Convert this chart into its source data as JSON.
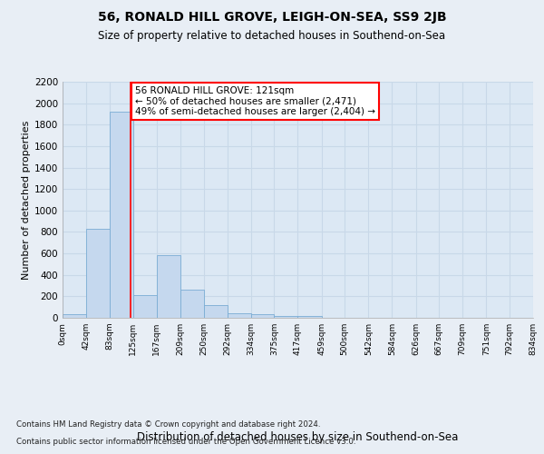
{
  "title": "56, RONALD HILL GROVE, LEIGH-ON-SEA, SS9 2JB",
  "subtitle": "Size of property relative to detached houses in Southend-on-Sea",
  "xlabel": "Distribution of detached houses by size in Southend-on-Sea",
  "ylabel": "Number of detached properties",
  "bar_edges": [
    0,
    42,
    83,
    125,
    167,
    209,
    250,
    292,
    334,
    375,
    417,
    459,
    500,
    542,
    584,
    626,
    667,
    709,
    751,
    792,
    834
  ],
  "bar_heights": [
    30,
    830,
    1920,
    210,
    580,
    260,
    115,
    40,
    35,
    20,
    15,
    0,
    0,
    0,
    0,
    0,
    0,
    0,
    0,
    0
  ],
  "bar_color": "#c5d8ee",
  "bar_edge_color": "#7aacd4",
  "property_line_x": 121,
  "property_line_color": "red",
  "annotation_text": "56 RONALD HILL GROVE: 121sqm\n← 50% of detached houses are smaller (2,471)\n49% of semi-detached houses are larger (2,404) →",
  "annotation_box_color": "white",
  "annotation_box_edge_color": "red",
  "ylim": [
    0,
    2200
  ],
  "yticks": [
    0,
    200,
    400,
    600,
    800,
    1000,
    1200,
    1400,
    1600,
    1800,
    2000,
    2200
  ],
  "grid_color": "#c8d8e8",
  "background_color": "#e8eef5",
  "plot_background": "#dce8f4",
  "footer_line1": "Contains HM Land Registry data © Crown copyright and database right 2024.",
  "footer_line2": "Contains public sector information licensed under the Open Government Licence v3.0.",
  "tick_labels": [
    "0sqm",
    "42sqm",
    "83sqm",
    "125sqm",
    "167sqm",
    "209sqm",
    "250sqm",
    "292sqm",
    "334sqm",
    "375sqm",
    "417sqm",
    "459sqm",
    "500sqm",
    "542sqm",
    "584sqm",
    "626sqm",
    "667sqm",
    "709sqm",
    "751sqm",
    "792sqm",
    "834sqm"
  ]
}
